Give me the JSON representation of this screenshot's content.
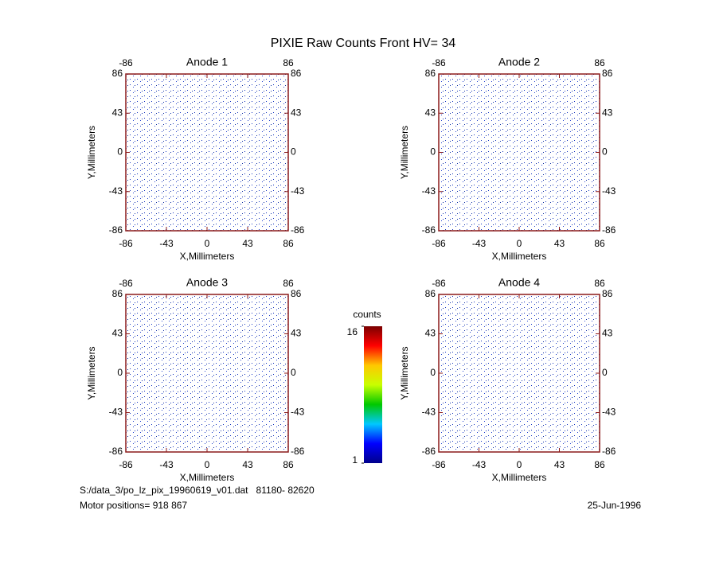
{
  "title": "PIXIE Raw Counts Front HV= 34",
  "chart_data": [
    {
      "type": "image",
      "title": "Anode 1",
      "xlabel": "X,Millimeters",
      "ylabel": "Y,Millimeters",
      "xlim": [
        -86,
        86
      ],
      "ylim": [
        -86,
        86
      ],
      "xticks": [
        -86,
        -43,
        0,
        43,
        86
      ],
      "yticks": [
        -86,
        -43,
        0,
        43,
        86
      ]
    },
    {
      "type": "image",
      "title": "Anode 2",
      "xlabel": "X,Millimeters",
      "ylabel": "Y,Millimeters",
      "xlim": [
        -86,
        86
      ],
      "ylim": [
        -86,
        86
      ],
      "xticks": [
        -86,
        -43,
        0,
        43,
        86
      ],
      "yticks": [
        -86,
        -43,
        0,
        43,
        86
      ]
    },
    {
      "type": "image",
      "title": "Anode 3",
      "xlabel": "X,Millimeters",
      "ylabel": "Y,Millimeters",
      "xlim": [
        -86,
        86
      ],
      "ylim": [
        -86,
        86
      ],
      "xticks": [
        -86,
        -43,
        0,
        43,
        86
      ],
      "yticks": [
        -86,
        -43,
        0,
        43,
        86
      ]
    },
    {
      "type": "image",
      "title": "Anode 4",
      "xlabel": "X,Millimeters",
      "ylabel": "Y,Millimeters",
      "xlim": [
        -86,
        86
      ],
      "ylim": [
        -86,
        86
      ],
      "xticks": [
        -86,
        -43,
        0,
        43,
        86
      ],
      "yticks": [
        -86,
        -43,
        0,
        43,
        86
      ]
    }
  ],
  "colorbar": {
    "label": "counts",
    "lim": [
      1,
      16
    ],
    "ticks": [
      1,
      16
    ],
    "colors": [
      "#00008b",
      "#0000ff",
      "#00c8ff",
      "#00c800",
      "#c8ff00",
      "#ffc800",
      "#ff0000",
      "#7a0000"
    ]
  },
  "footer": {
    "file": "S:/data_3/po_lz_pix_19960619_v01.dat   81180- 82620",
    "motor": "Motor positions= 918 867",
    "date": "25-Jun-1996"
  }
}
